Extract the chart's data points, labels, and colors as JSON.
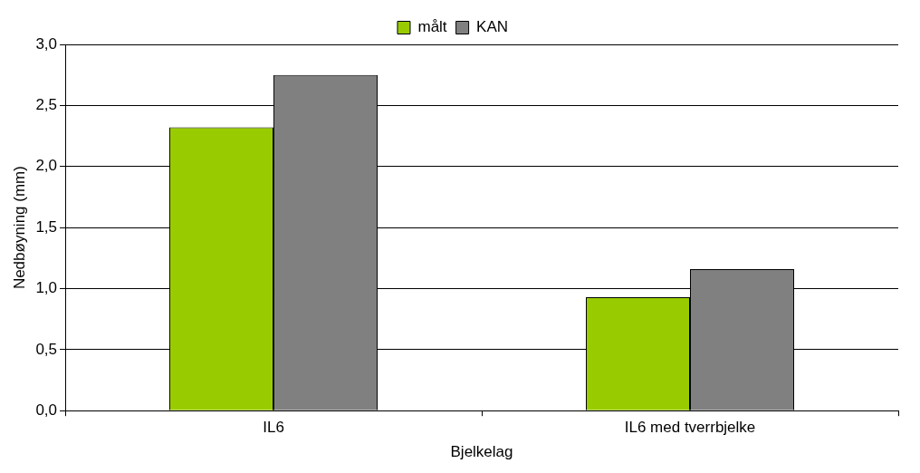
{
  "chart_data": {
    "type": "bar",
    "xlabel": "Bjelkelag",
    "ylabel": "Nedbøyning (mm)",
    "categories": [
      "IL6",
      "IL6 med tverrbjelke"
    ],
    "series": [
      {
        "name": "målt",
        "color": "#99cc00",
        "values": [
          2.32,
          0.93
        ]
      },
      {
        "name": "KAN",
        "color": "#808080",
        "values": [
          2.75,
          1.16
        ]
      }
    ],
    "ylim": [
      0,
      3
    ],
    "yticks": [
      {
        "value": 0,
        "label": "0,0"
      },
      {
        "value": 0.5,
        "label": "0,5"
      },
      {
        "value": 1,
        "label": "1,0"
      },
      {
        "value": 1.5,
        "label": "1,5"
      },
      {
        "value": 2,
        "label": "2,0"
      },
      {
        "value": 2.5,
        "label": "2,5"
      },
      {
        "value": 3,
        "label": "3,0"
      }
    ],
    "grid": "y",
    "legend": "top"
  }
}
